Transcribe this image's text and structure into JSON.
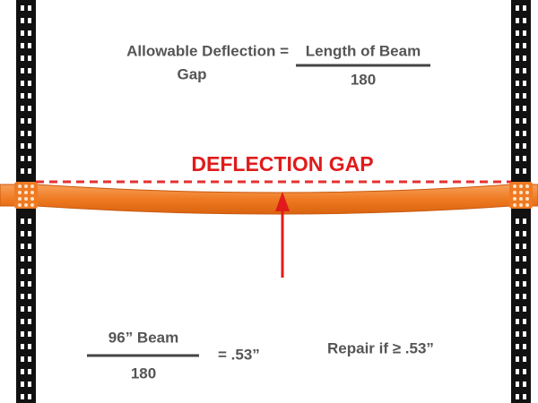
{
  "formula": {
    "left": "Allowable Deflection =",
    "left_second_line": "Gap",
    "numerator": "Length of Beam",
    "denominator": "180"
  },
  "deflection_label": "DEFLECTION GAP",
  "example": {
    "numerator": "96” Beam",
    "denominator": "180",
    "result": "= .53”"
  },
  "repair_rule": "Repair if ≥ .53”"
}
